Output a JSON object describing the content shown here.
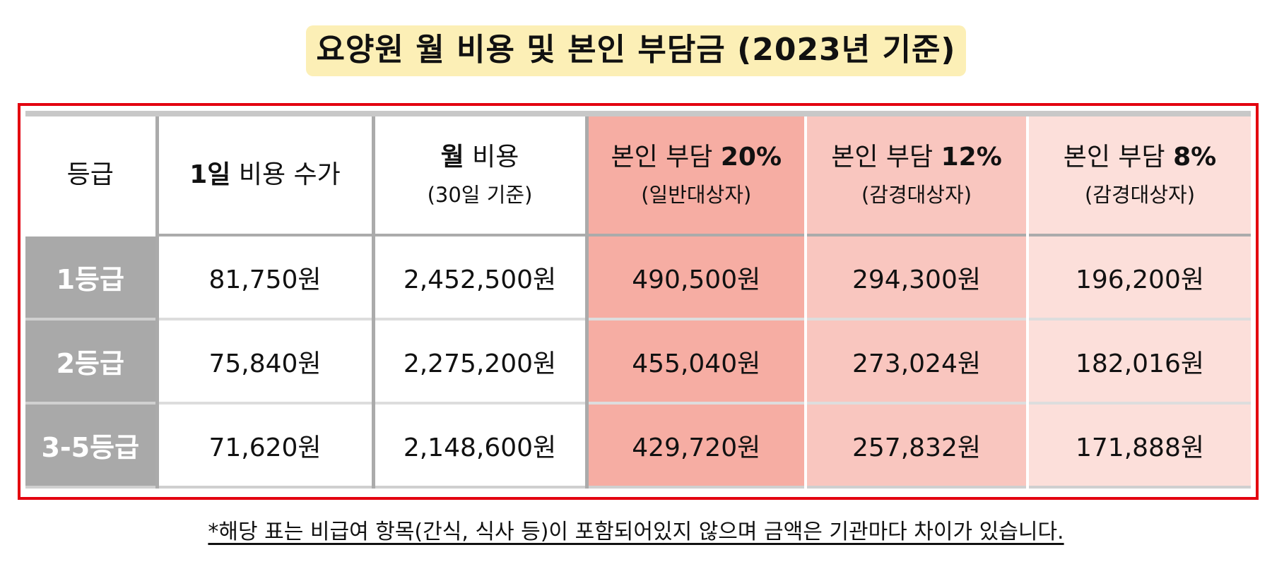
{
  "title": "요양원 월 비용 및 본인 부담금 (2023년 기준)",
  "table": {
    "headers": {
      "grade": "등급",
      "daily_bold": "1일",
      "daily_rest": " 비용 수가",
      "monthly_bold": "월",
      "monthly_rest": " 비용",
      "monthly_sub": "(30일 기준)",
      "p20_main": "본인 부담 ",
      "p20_pct": "20%",
      "p20_sub": "(일반대상자)",
      "p12_main": "본인 부담 ",
      "p12_pct": "12%",
      "p12_sub": "(감경대상자)",
      "p8_main": "본인 부담 ",
      "p8_pct": "8%",
      "p8_sub": "(감경대상자)"
    },
    "rows": [
      {
        "grade": "1등급",
        "daily": "81,750원",
        "monthly": "2,452,500원",
        "p20": "490,500원",
        "p12": "294,300원",
        "p8": "196,200원"
      },
      {
        "grade": "2등급",
        "daily": "75,840원",
        "monthly": "2,275,200원",
        "p20": "455,040원",
        "p12": "273,024원",
        "p8": "182,016원"
      },
      {
        "grade": "3-5등급",
        "daily": "71,620원",
        "monthly": "2,148,600원",
        "p20": "429,720원",
        "p12": "257,832원",
        "p8": "171,888원"
      }
    ]
  },
  "footnote": "*해당 표는 비급여 항목(간식, 식사 등)이 포함되어있지 않으며 금액은 기관마다 차이가 있습니다.",
  "colors": {
    "title_bg": "#fcefb6",
    "frame_border": "#e3000f",
    "grade_bg": "#a9a9a9",
    "p20_bg": "#f6ada3",
    "p12_bg": "#f9c6bf",
    "p8_bg": "#fcdfda"
  }
}
